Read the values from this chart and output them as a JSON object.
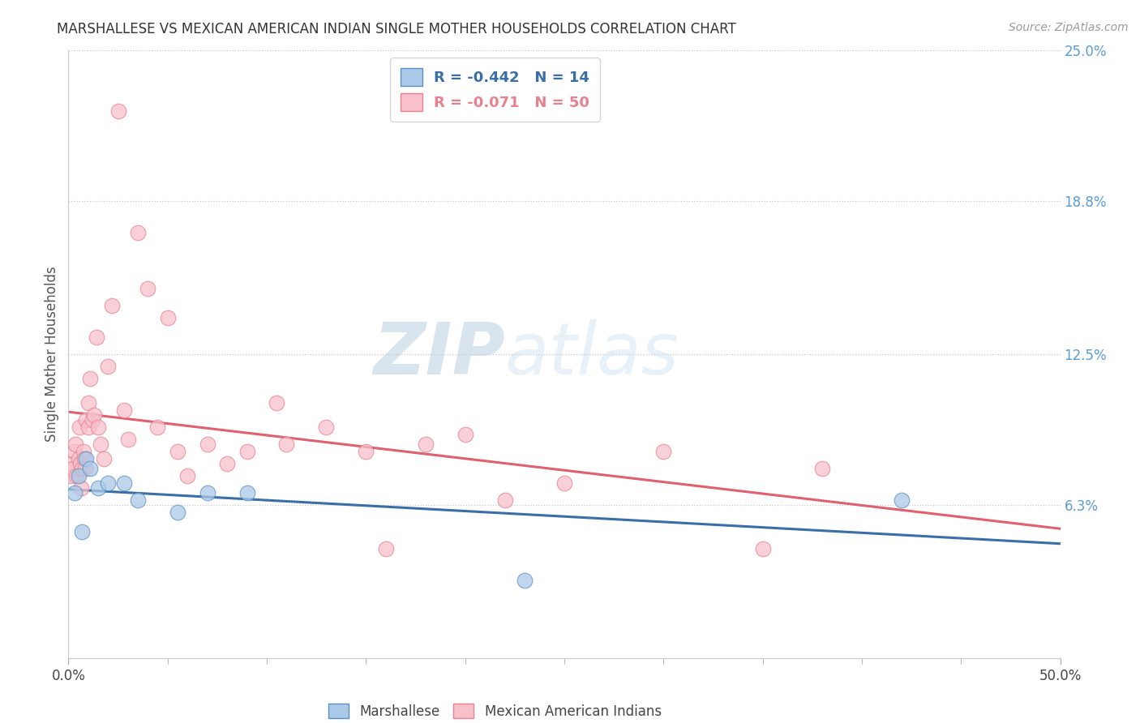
{
  "title": "MARSHALLESE VS MEXICAN AMERICAN INDIAN SINGLE MOTHER HOUSEHOLDS CORRELATION CHART",
  "source": "Source: ZipAtlas.com",
  "ylabel": "Single Mother Households",
  "right_yticks": [
    6.3,
    12.5,
    18.8,
    25.0
  ],
  "right_ytick_labels": [
    "6.3%",
    "12.5%",
    "18.8%",
    "25.0%"
  ],
  "legend_blue_label": "Marshallese",
  "legend_pink_label": "Mexican American Indians",
  "blue_R": -0.442,
  "blue_N": 14,
  "pink_R": -0.071,
  "pink_N": 50,
  "blue_fill_color": "#aac9e8",
  "pink_fill_color": "#f7c0cb",
  "blue_edge_color": "#5a8fc0",
  "pink_edge_color": "#e8808e",
  "blue_line_color": "#3a6ea8",
  "pink_line_color": "#e06070",
  "watermark_zip": "ZIP",
  "watermark_atlas": "atlas",
  "blue_x": [
    0.3,
    0.5,
    0.7,
    0.9,
    1.1,
    1.5,
    2.0,
    2.8,
    3.5,
    5.5,
    7.0,
    9.0,
    23.0,
    42.0
  ],
  "blue_y": [
    6.8,
    7.5,
    5.2,
    8.2,
    7.8,
    7.0,
    7.2,
    7.2,
    6.5,
    6.0,
    6.8,
    6.8,
    3.2,
    6.5
  ],
  "pink_x": [
    0.15,
    0.2,
    0.25,
    0.3,
    0.35,
    0.4,
    0.5,
    0.55,
    0.6,
    0.65,
    0.7,
    0.75,
    0.8,
    0.85,
    0.9,
    1.0,
    1.0,
    1.1,
    1.2,
    1.3,
    1.4,
    1.5,
    1.6,
    1.8,
    2.0,
    2.2,
    2.5,
    2.8,
    3.0,
    3.5,
    4.0,
    4.5,
    5.0,
    5.5,
    6.0,
    7.0,
    8.0,
    9.0,
    10.5,
    11.0,
    13.0,
    15.0,
    16.0,
    18.0,
    20.0,
    22.0,
    25.0,
    30.0,
    35.0,
    38.0
  ],
  "pink_y": [
    7.5,
    8.0,
    7.8,
    8.5,
    8.8,
    7.5,
    8.2,
    9.5,
    8.0,
    7.0,
    7.8,
    8.5,
    8.2,
    7.8,
    9.8,
    10.5,
    9.5,
    11.5,
    9.8,
    10.0,
    13.2,
    9.5,
    8.8,
    8.2,
    12.0,
    14.5,
    22.5,
    10.2,
    9.0,
    17.5,
    15.2,
    9.5,
    14.0,
    8.5,
    7.5,
    8.8,
    8.0,
    8.5,
    10.5,
    8.8,
    9.5,
    8.5,
    4.5,
    8.8,
    9.2,
    6.5,
    7.2,
    8.5,
    4.5,
    7.8
  ]
}
